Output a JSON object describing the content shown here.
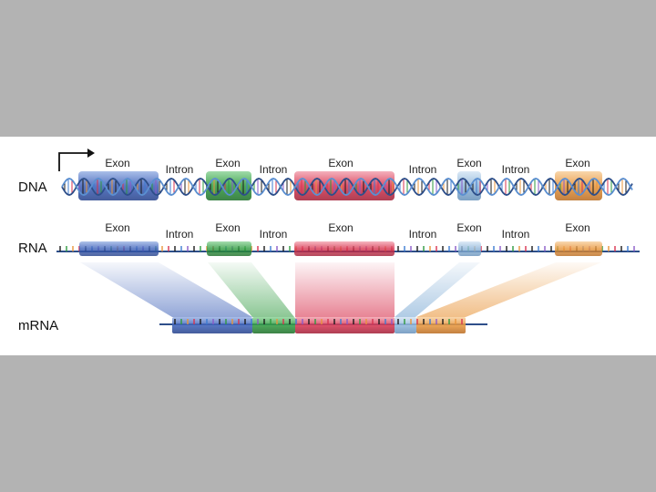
{
  "rows": {
    "dna": "DNA",
    "rna": "RNA",
    "mrna": "mRNA"
  },
  "segments": [
    {
      "label": "Exon",
      "type": "exon",
      "color": "#3b5fb8"
    },
    {
      "label": "Intron",
      "type": "intron"
    },
    {
      "label": "Exon",
      "type": "exon",
      "color": "#2e9a3e"
    },
    {
      "label": "Intron",
      "type": "intron"
    },
    {
      "label": "Exon",
      "type": "exon",
      "color": "#d8334f"
    },
    {
      "label": "Intron",
      "type": "intron"
    },
    {
      "label": "Exon",
      "type": "exon",
      "color": "#8fb6da"
    },
    {
      "label": "Intron",
      "type": "intron"
    },
    {
      "label": "Exon",
      "type": "exon",
      "color": "#e8953a"
    }
  ],
  "colors": {
    "strand": "#2e4f8a",
    "promoter_arrow": "#111111"
  }
}
